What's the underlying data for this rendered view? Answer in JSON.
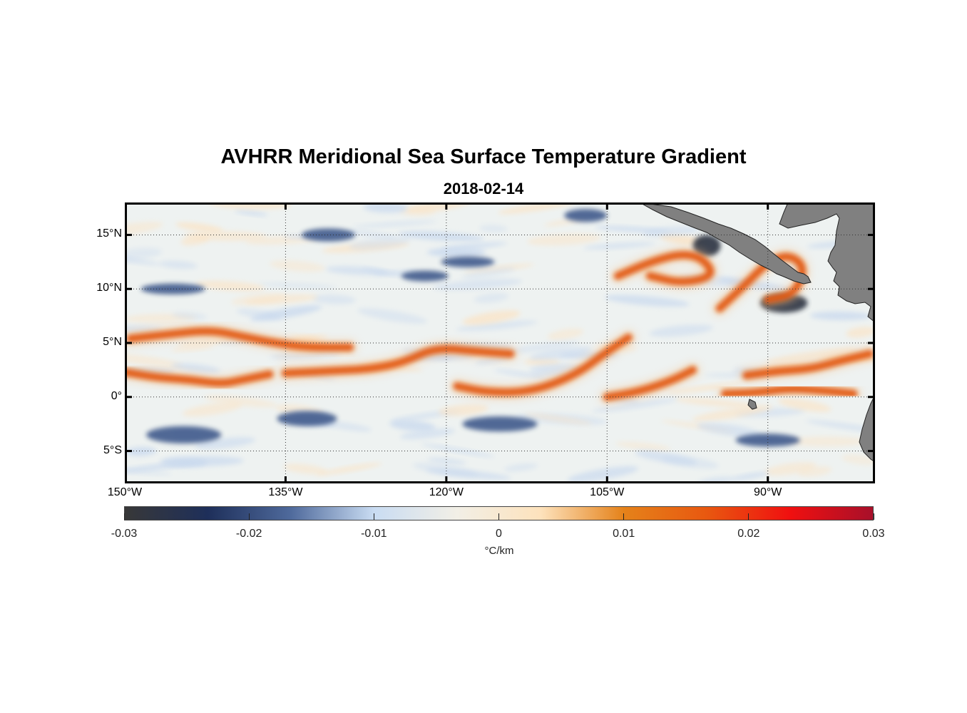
{
  "title": "AVHRR Meridional Sea Surface Temperature Gradient",
  "subtitle": "2018-02-14",
  "map": {
    "projection": "equirectangular",
    "lon_range": [
      -150,
      -80
    ],
    "lat_range": [
      -8,
      18
    ],
    "grid": "dotted",
    "ocean_background": "#eef2f1",
    "land_color": "#808080",
    "latitude_ticks": [
      {
        "lat": 15,
        "text": "15°N"
      },
      {
        "lat": 10,
        "text": "10°N"
      },
      {
        "lat": 5,
        "text": "5°N"
      },
      {
        "lat": 0,
        "text": "0°"
      },
      {
        "lat": -5,
        "text": "5°S"
      }
    ],
    "longitude_ticks": [
      {
        "lon": -150,
        "text": "150°W"
      },
      {
        "lon": -135,
        "text": "135°W"
      },
      {
        "lon": -120,
        "text": "120°W"
      },
      {
        "lon": -105,
        "text": "105°W"
      },
      {
        "lon": -90,
        "text": "90°W"
      }
    ],
    "warm_fronts": [
      {
        "id": "equatorial-front-west",
        "points": [
          [
            -150,
            2.3
          ],
          [
            -147,
            1.8
          ],
          [
            -144,
            1.6
          ],
          [
            -141,
            1.2
          ],
          [
            -139,
            1.6
          ],
          [
            -136.5,
            2.1
          ]
        ]
      },
      {
        "id": "northern-front-west",
        "points": [
          [
            -149.5,
            5.4
          ],
          [
            -146,
            5.8
          ],
          [
            -142,
            6.2
          ],
          [
            -139,
            5.6
          ],
          [
            -136,
            5.0
          ],
          [
            -133,
            4.6
          ],
          [
            -129,
            4.6
          ]
        ]
      },
      {
        "id": "equatorial-front-mid",
        "points": [
          [
            -135,
            2.2
          ],
          [
            -131,
            2.4
          ],
          [
            -127,
            2.6
          ],
          [
            -124,
            3.2
          ],
          [
            -121,
            4.6
          ],
          [
            -117,
            4.2
          ],
          [
            -114,
            4.0
          ]
        ]
      },
      {
        "id": "equatorial-front-east",
        "points": [
          [
            -119,
            1.0
          ],
          [
            -116,
            0.4
          ],
          [
            -112,
            0.5
          ],
          [
            -108,
            2.0
          ],
          [
            -105,
            4.2
          ],
          [
            -103,
            5.5
          ]
        ]
      },
      {
        "id": "front-near-galapagos",
        "points": [
          [
            -105,
            0.0
          ],
          [
            -102,
            0.5
          ],
          [
            -99,
            1.5
          ],
          [
            -97,
            2.5
          ]
        ]
      },
      {
        "id": "front-eastern-pacific",
        "points": [
          [
            -94,
            0.3
          ],
          [
            -91,
            0.4
          ],
          [
            -88,
            0.8
          ],
          [
            -85,
            0.6
          ],
          [
            -82,
            0.3
          ]
        ]
      },
      {
        "id": "front-eastern-north",
        "points": [
          [
            -92,
            2.0
          ],
          [
            -89,
            2.4
          ],
          [
            -86,
            2.6
          ],
          [
            -83,
            3.4
          ],
          [
            -80.5,
            4.0
          ]
        ]
      },
      {
        "id": "tehuantepec-front",
        "points": [
          [
            -104,
            11.2
          ],
          [
            -101,
            12.5
          ],
          [
            -98,
            13.3
          ],
          [
            -96,
            12.8
          ],
          [
            -95,
            11.2
          ],
          [
            -98,
            10.5
          ],
          [
            -101,
            11.2
          ]
        ]
      },
      {
        "id": "papagayo-front",
        "points": [
          [
            -94.5,
            8.2
          ],
          [
            -92,
            10.5
          ],
          [
            -90,
            12.5
          ],
          [
            -88,
            13.2
          ],
          [
            -86.5,
            12.0
          ],
          [
            -87.5,
            9.5
          ],
          [
            -90,
            9.0
          ]
        ]
      }
    ],
    "cold_patches": [
      {
        "id": "tehuantepec-cold",
        "center": [
          -95.7,
          14.0
        ],
        "radius": [
          1.3,
          1.0
        ]
      },
      {
        "id": "papagayo-cold",
        "center": [
          -88.5,
          8.7
        ],
        "radius": [
          2.2,
          0.9
        ]
      },
      {
        "id": "cold-south-west",
        "center": [
          -144.5,
          -3.5
        ],
        "radius": [
          3.5,
          0.8
        ]
      },
      {
        "id": "cold-south-mid",
        "center": [
          -133,
          -2.0
        ],
        "radius": [
          2.8,
          0.7
        ]
      },
      {
        "id": "cold-south-central",
        "center": [
          -115,
          -2.5
        ],
        "radius": [
          3.5,
          0.7
        ]
      },
      {
        "id": "cold-north-west",
        "center": [
          -131,
          15.0
        ],
        "radius": [
          2.5,
          0.6
        ]
      },
      {
        "id": "cold-north-mid",
        "center": [
          -107,
          16.8
        ],
        "radius": [
          2.0,
          0.6
        ]
      },
      {
        "id": "cold-north-central",
        "center": [
          -118,
          12.5
        ],
        "radius": [
          2.5,
          0.5
        ]
      },
      {
        "id": "cold-west-10N",
        "center": [
          -145.5,
          10.0
        ],
        "radius": [
          3.0,
          0.5
        ]
      },
      {
        "id": "cold-eastern-south",
        "center": [
          -90,
          -4.0
        ],
        "radius": [
          3.0,
          0.6
        ]
      },
      {
        "id": "cold-north-central-b",
        "center": [
          -122,
          11.2
        ],
        "radius": [
          2.2,
          0.5
        ]
      }
    ]
  },
  "colorbar": {
    "min": -0.03,
    "max": 0.03,
    "ticks": [
      "-0.03",
      "-0.02",
      "-0.01",
      "0",
      "0.01",
      "0.02",
      "0.03"
    ],
    "unit": "°C/km",
    "colors": [
      "#383838",
      "#1e2f5a",
      "#4f6a9c",
      "#c9dcf2",
      "#f2efe6",
      "#fde2bc",
      "#e5821a",
      "#e85810",
      "#f01010",
      "#a8102a"
    ]
  }
}
